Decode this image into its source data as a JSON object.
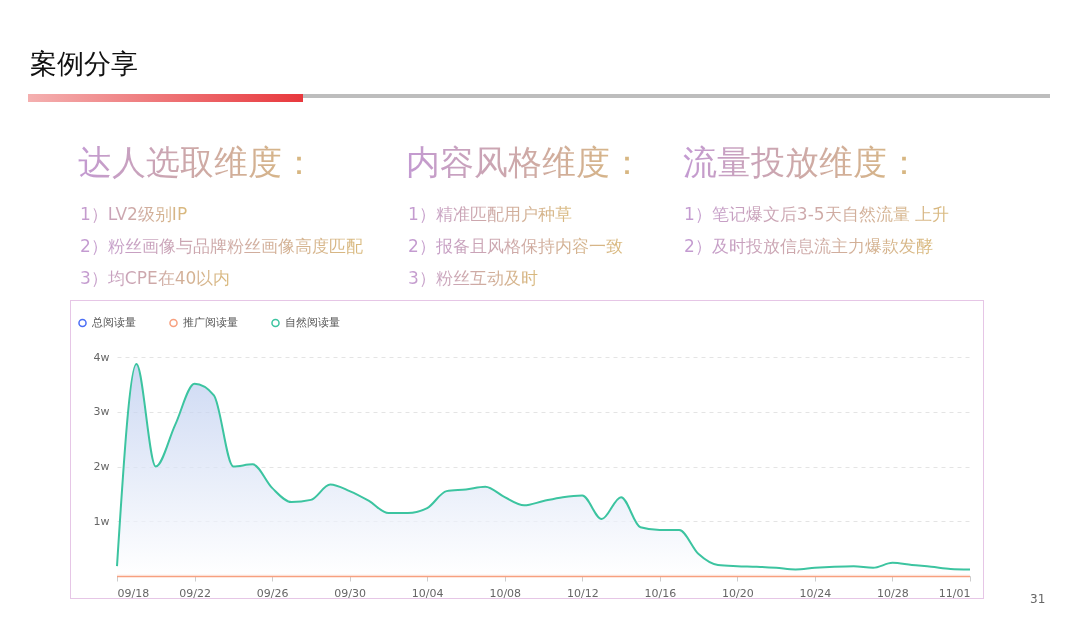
{
  "chart_data": {
    "type": "line",
    "title": "案例分享",
    "annotations": [
      "达人选取维度：",
      "内容风格维度：",
      "流量投放维度：",
      "1）LV2级别IP",
      "2）粉丝画像与品牌粉丝画像高度匹配",
      "3）均CPE在40以内",
      "1）精准匹配用户种草",
      "2）报备且风格保持内容一致",
      "3）粉丝互动及时",
      "1）笔记爆文后3-5天自然流量 上升",
      "2）及时投放信息流主力爆款发酵",
      "31"
    ],
    "x": [
      "--09-18",
      "--09-19",
      "--09-20",
      "--09-21",
      "--09-22",
      "--09-23",
      "--09-24",
      "--09-25",
      "--09-26",
      "--09-27",
      "--09-28",
      "--09-29",
      "--09-30",
      "--10-01",
      "--10-02",
      "--10-03",
      "--10-04",
      "--10-05",
      "--10-06",
      "--10-07",
      "--10-08",
      "--10-09",
      "--10-10",
      "--10-11",
      "--10-12",
      "--10-13",
      "--10-14",
      "--10-15",
      "--10-16",
      "--10-17",
      "--10-18",
      "--10-19",
      "--10-20",
      "--10-21",
      "--10-22",
      "--10-23",
      "--10-24",
      "--10-25",
      "--10-26",
      "--10-27",
      "--10-28",
      "--10-29",
      "--10-30",
      "--10-31",
      "--11-01"
    ],
    "series": [
      {
        "name": "总阅读量",
        "color": "#4b6ef5",
        "values": [
          null,
          null,
          null,
          null,
          null,
          null,
          null,
          null,
          null,
          null,
          null,
          null,
          null,
          null,
          null,
          null,
          null,
          null,
          null,
          null,
          null,
          null,
          null,
          null,
          null,
          null,
          null,
          null,
          null,
          null,
          null,
          null,
          null,
          null,
          null,
          null,
          null,
          null,
          null,
          null,
          null,
          null,
          null,
          null,
          null
        ]
      },
      {
        "name": "推广阅读量",
        "color": "#f7a07f",
        "values": [
          0,
          0,
          0,
          0,
          0,
          0,
          0,
          0,
          0,
          0,
          0,
          0,
          0,
          0,
          0,
          0,
          0,
          0,
          0,
          0,
          0,
          0,
          0,
          0,
          0,
          0,
          0,
          0,
          0,
          0,
          0,
          0,
          0,
          0,
          0,
          0,
          0,
          0,
          0,
          0,
          0,
          0,
          0,
          0,
          0
        ]
      },
      {
        "name": "自然阅读量",
        "color": "#3cc4a0",
        "type": "area",
        "values": [
          0.18,
          3.87,
          2.0,
          2.76,
          3.51,
          3.3,
          2.0,
          2.04,
          1.61,
          1.35,
          1.39,
          1.67,
          1.55,
          1.37,
          1.15,
          1.15,
          1.24,
          1.55,
          1.58,
          1.63,
          1.44,
          1.29,
          1.37,
          1.44,
          1.47,
          1.04,
          1.44,
          0.89,
          0.84,
          0.84,
          0.4,
          0.2,
          0.18,
          0.17,
          0.15,
          0.12,
          0.15,
          0.17,
          0.18,
          0.15,
          0.24,
          0.2,
          0.17,
          0.13,
          0.12
        ]
      }
    ],
    "ylim": [
      0,
      4
    ],
    "yticks": [
      {
        "value": 1,
        "label": "1w"
      },
      {
        "value": 2,
        "label": "2w"
      },
      {
        "value": 3,
        "label": "3w"
      },
      {
        "value": 4,
        "label": "4w"
      }
    ],
    "xlim": [
      "--09-18",
      "--11-01"
    ],
    "xticks": [
      {
        "value": "--09-18",
        "label": "09/18"
      },
      {
        "value": "--09-22",
        "label": "09/22"
      },
      {
        "value": "--09-26",
        "label": "09/26"
      },
      {
        "value": "--09-30",
        "label": "09/30"
      },
      {
        "value": "--10-04",
        "label": "10/04"
      },
      {
        "value": "--10-08",
        "label": "10/08"
      },
      {
        "value": "--10-12",
        "label": "10/12"
      },
      {
        "value": "--10-16",
        "label": "10/16"
      },
      {
        "value": "--10-20",
        "label": "10/20"
      },
      {
        "value": "--10-24",
        "label": "10/24"
      },
      {
        "value": "--10-28",
        "label": "10/28"
      },
      {
        "value": "--11-01",
        "label": "11/01"
      }
    ],
    "grid": "y",
    "legend": "top left",
    "marker": "none",
    "line_style": "solid"
  }
}
